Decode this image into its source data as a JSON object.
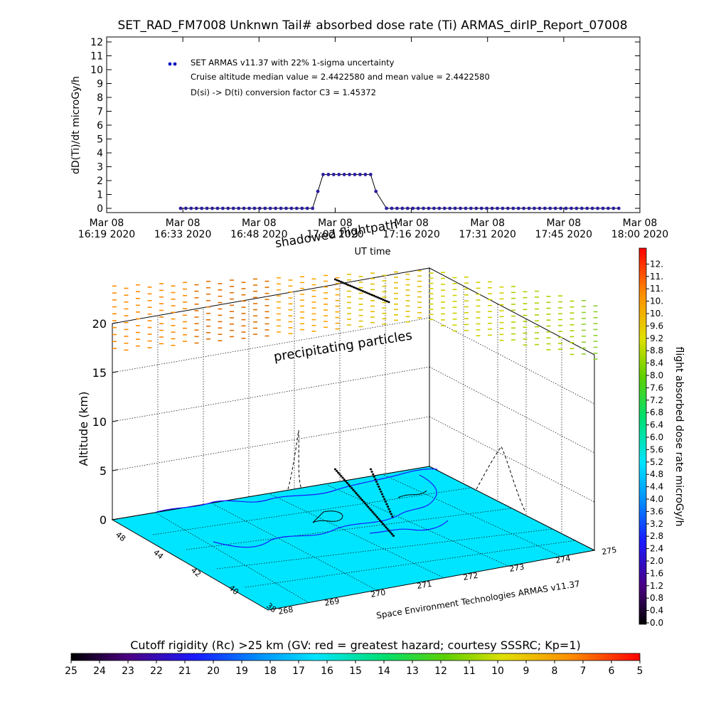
{
  "title": "SET_RAD_FM7008  Unknwn Tail#  absorbed dose rate (Ti) ARMAS_dirIP_Report_07008",
  "chart_data": [
    {
      "type": "scatter",
      "ylabel": "dD(Ti)/dt microGy/h",
      "xlabel": "UT time",
      "ylim": [
        0,
        12
      ],
      "y_ticks": [
        "0",
        "1",
        "2",
        "3",
        "4",
        "5",
        "6",
        "7",
        "8",
        "9",
        "10",
        "11",
        "12"
      ],
      "x_ticks": [
        {
          "line1": "Mar 08",
          "line2": "16:19 2020"
        },
        {
          "line1": "Mar 08",
          "line2": "16:33 2020"
        },
        {
          "line1": "Mar 08",
          "line2": "16:48 2020"
        },
        {
          "line1": "Mar 08",
          "line2": "17:02 2020"
        },
        {
          "line1": "Mar 08",
          "line2": "17:16 2020"
        },
        {
          "line1": "Mar 08",
          "line2": "17:31 2020"
        },
        {
          "line1": "Mar 08",
          "line2": "17:45 2020"
        },
        {
          "line1": "Mar 08",
          "line2": "18:00 2020"
        }
      ],
      "xlim": [
        0,
        101
      ],
      "legend": [
        "SET ARMAS v11.37 with 22% 1-sigma uncertainty",
        "Cruise altitude median value = 2.4422580 and mean value = 2.4422580",
        "D(si) -> D(ti) conversion factor C3 = 1.45372"
      ],
      "legend_color": "#1010c0",
      "marker_color": "#2a1fa0",
      "series": [
        {
          "x": [
            14,
            15,
            16,
            17,
            18,
            19,
            20,
            21,
            22,
            23,
            24,
            25,
            26,
            27,
            28,
            29,
            30,
            31,
            32,
            33,
            34,
            35,
            36,
            37,
            38,
            39
          ],
          "y": [
            0,
            0,
            0,
            0,
            0,
            0,
            0,
            0,
            0,
            0,
            0,
            0,
            0,
            0,
            0,
            0,
            0,
            0,
            0,
            0,
            0,
            0,
            0,
            0,
            0,
            0
          ]
        },
        {
          "x": [
            40,
            41,
            42,
            43,
            44,
            45,
            46,
            47,
            48,
            49,
            50,
            51
          ],
          "y": [
            1.22,
            2.44,
            2.44,
            2.44,
            2.44,
            2.44,
            2.44,
            2.44,
            2.44,
            2.44,
            2.44,
            1.22
          ]
        },
        {
          "x": [
            53,
            54,
            55,
            56,
            57,
            58,
            59,
            60,
            61,
            62,
            63,
            64,
            65,
            66,
            67,
            68,
            69,
            70,
            71,
            72,
            73,
            74,
            75,
            76,
            77,
            78,
            79,
            80,
            81,
            82,
            83,
            84,
            85,
            86,
            87,
            88,
            89,
            90,
            91,
            92,
            93,
            94,
            95,
            96,
            97
          ],
          "y": [
            0,
            0,
            0,
            0,
            0,
            0,
            0,
            0,
            0,
            0,
            0,
            0,
            0,
            0,
            0,
            0,
            0,
            0,
            0,
            0,
            0,
            0,
            0,
            0,
            0,
            0,
            0,
            0,
            0,
            0,
            0,
            0,
            0,
            0,
            0,
            0,
            0,
            0,
            0,
            0,
            0,
            0,
            0,
            0,
            0
          ]
        }
      ]
    },
    {
      "type": "scatter",
      "ylabel": "Altitude (km)",
      "z_ticks": [
        "0",
        "5",
        "10",
        "15",
        "20"
      ],
      "lat_ticks": [
        "48",
        "44",
        "42",
        "40",
        "38"
      ],
      "lon_ticks": [
        "268",
        "269",
        "270",
        "271",
        "272",
        "273",
        "274",
        "275"
      ],
      "annotations": [
        "shadowed flightpath",
        "precipitating particles",
        "Space Environment Technologies ARMAS v11.37"
      ],
      "surface_color": "#00e5ff"
    },
    {
      "type": "heatmap",
      "label": "flight absorbed dose rate microGy/h",
      "ticks": [
        "0.0",
        "0.4",
        "0.8",
        "1.2",
        "1.6",
        "2.0",
        "2.4",
        "2.8",
        "3.2",
        "3.6",
        "4.0",
        "4.4",
        "4.8",
        "5.2",
        "5.6",
        "6.0",
        "6.4",
        "6.8",
        "7.2",
        "7.6",
        "8.0",
        "8.4",
        "8.8",
        "9.2",
        "9.6",
        "10.",
        "10.",
        "11.",
        "11.",
        "12."
      ]
    },
    {
      "type": "heatmap",
      "label": "Cutoff rigidity (Rc) >25 km (GV: red = greatest hazard; courtesy SSSRC; Kp=1)",
      "ticks": [
        "25",
        "24",
        "23",
        "22",
        "21",
        "20",
        "19",
        "18",
        "17",
        "16",
        "15",
        "14",
        "13",
        "12",
        "11",
        "10",
        "9",
        "8",
        "7",
        "6",
        "5"
      ]
    }
  ]
}
